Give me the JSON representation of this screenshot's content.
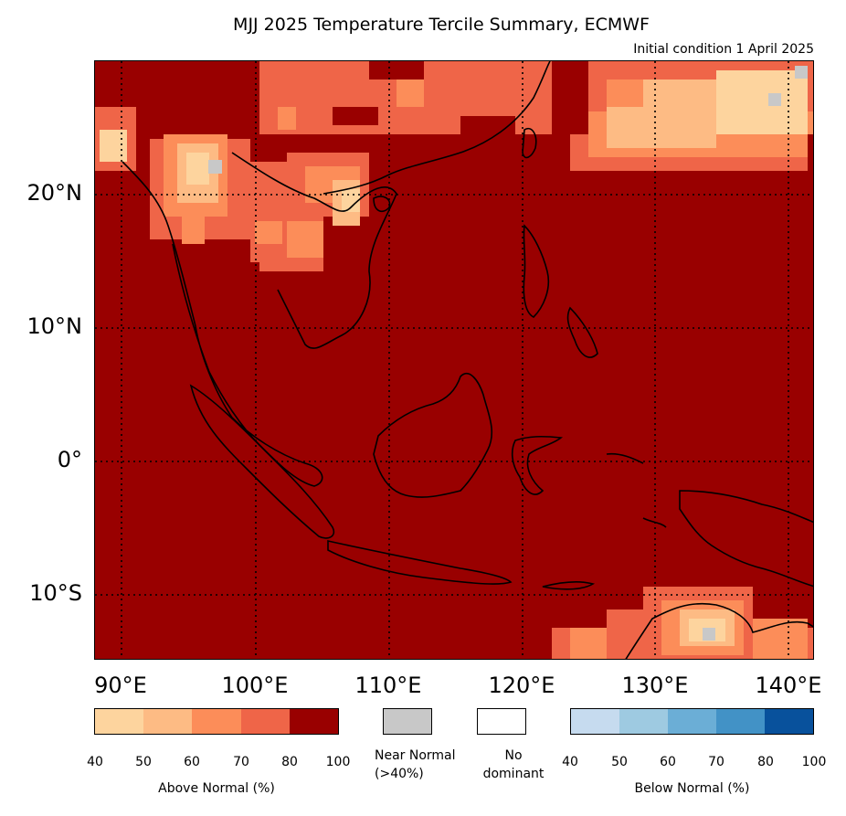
{
  "title": "MJJ 2025 Temperature Tercile Summary, ECMWF",
  "subtitle": "Initial condition 1 April 2025",
  "map": {
    "lat_labels": [
      "20°N",
      "10°N",
      "0°",
      "10°S"
    ],
    "lon_labels": [
      "90°E",
      "100°E",
      "110°E",
      "120°E",
      "130°E",
      "140°E"
    ],
    "background_color": "#990000"
  },
  "legend": {
    "above": {
      "label": "Above Normal (%)",
      "ticks": [
        "40",
        "50",
        "60",
        "70",
        "80",
        "100"
      ],
      "colors": [
        "#fdd49e",
        "#fdbb84",
        "#fc8d59",
        "#ef6548",
        "#990000"
      ]
    },
    "near": {
      "label_line1": "Near Normal",
      "label_line2": "(>40%)",
      "color": "#c8c8c8"
    },
    "none": {
      "label_line1": "No",
      "label_line2": "dominant",
      "color": "#ffffff"
    },
    "below": {
      "label": "Below Normal (%)",
      "ticks": [
        "40",
        "50",
        "60",
        "70",
        "80",
        "100"
      ],
      "colors": [
        "#c6dbef",
        "#9ecae1",
        "#6baed6",
        "#4292c6",
        "#08519c"
      ]
    }
  }
}
